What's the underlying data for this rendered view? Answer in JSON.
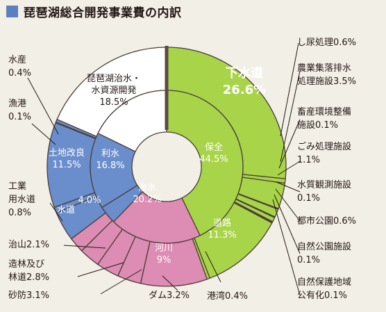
{
  "title": "琵琶湖総合開発事業費の内訳",
  "chart_data": {
    "type": "pie",
    "title": "琵琶湖総合開発事業費の内訳",
    "unit": "%",
    "inner_ring": [
      {
        "label": "保全",
        "value": 44.5,
        "color": "#a8d44a"
      },
      {
        "label": "治水",
        "value": 20.2,
        "color": "#dd8cb4"
      },
      {
        "label": "水道",
        "value": 4.0,
        "color": "#6a8dcb"
      },
      {
        "label": "利水",
        "value": 16.8,
        "color": "#6a8dcb"
      },
      {
        "label": "琵琶湖治水・水資源開発",
        "value": 18.5,
        "color": "#ffffff"
      }
    ],
    "outer_ring": [
      {
        "label": "下水道",
        "value": 26.6,
        "group": "保全",
        "color": "#a8d44a"
      },
      {
        "label": "し尿処理",
        "value": 0.6,
        "group": "保全",
        "color": "#a8d44a"
      },
      {
        "label": "農業集落排水処理施設",
        "value": 3.5,
        "group": "保全",
        "color": "#a8d44a"
      },
      {
        "label": "畜産環境整備施設",
        "value": 0.1,
        "group": "保全",
        "color": "#a8d44a"
      },
      {
        "label": "ごみ処理施設",
        "value": 1.1,
        "group": "保全",
        "color": "#a8d44a"
      },
      {
        "label": "水質観測施設",
        "value": 0.1,
        "group": "保全",
        "color": "#a8d44a"
      },
      {
        "label": "都市公園",
        "value": 0.6,
        "group": "保全",
        "color": "#a8d44a"
      },
      {
        "label": "自然公園施設",
        "value": 0.1,
        "group": "保全",
        "color": "#a8d44a"
      },
      {
        "label": "自然保護地域公有化",
        "value": 0.1,
        "group": "保全",
        "color": "#a8d44a"
      },
      {
        "label": "道路",
        "value": 11.3,
        "group": "保全",
        "color": "#a8d44a"
      },
      {
        "label": "港湾",
        "value": 0.4,
        "group": "保全",
        "color": "#a8d44a"
      },
      {
        "label": "河川",
        "value": 9,
        "group": "治水",
        "color": "#dd8cb4"
      },
      {
        "label": "ダム",
        "value": 3.2,
        "group": "治水",
        "color": "#dd8cb4"
      },
      {
        "label": "砂防",
        "value": 3.1,
        "group": "治水",
        "color": "#dd8cb4"
      },
      {
        "label": "造林及び林道",
        "value": 2.8,
        "group": "治水",
        "color": "#dd8cb4"
      },
      {
        "label": "治山",
        "value": 2.1,
        "group": "治水",
        "color": "#dd8cb4"
      },
      {
        "label": "水道",
        "value": 4.0,
        "group": "水道",
        "color": "#6a8dcb"
      },
      {
        "label": "工業用水道",
        "value": 0.8,
        "group": "利水",
        "color": "#6a8dcb"
      },
      {
        "label": "土地改良",
        "value": 11.5,
        "group": "利水",
        "color": "#6a8dcb"
      },
      {
        "label": "漁港",
        "value": 0.1,
        "group": "利水",
        "color": "#6a8dcb"
      },
      {
        "label": "水産",
        "value": 0.4,
        "group": "利水",
        "color": "#6a8dcb"
      },
      {
        "label": "琵琶湖治水・水資源開発",
        "value": 18.5,
        "group": "琵琶湖治水・水資源開発",
        "color": "#ffffff"
      }
    ],
    "labels": {
      "gesuido": [
        "下水道",
        "26.6%"
      ],
      "biwako": [
        "琵琶湖治水・",
        "水資源開発",
        "18.5%"
      ],
      "hozen": [
        "保全",
        "44.5%"
      ],
      "risui": [
        "利水",
        "16.8%"
      ],
      "tochi": [
        "土地改良",
        "11.5%"
      ],
      "chisui": [
        "治水",
        "20.2%"
      ],
      "suido": [
        "水道"
      ],
      "suido_val": [
        "4.0%"
      ],
      "doro": [
        "道路",
        "11.3%"
      ],
      "kasen": [
        "河川",
        "9%"
      ],
      "shinyo": [
        "し尿処理0.6%"
      ],
      "nogyo": [
        "農業集落排水",
        "処理施設3.5%"
      ],
      "chikusan": [
        "畜産環境整備",
        "施設0.1%"
      ],
      "gomi": [
        "ごみ処理施設",
        "1.1%"
      ],
      "suishitsu": [
        "水質観測施設",
        "0.1%"
      ],
      "toshi": [
        "都市公園0.6%"
      ],
      "shizenkoen": [
        "自然公園施設",
        "0.1%"
      ],
      "shizenhogo": [
        "自然保護地域",
        "公有化0.1%"
      ],
      "kowan": [
        "港湾0.4%"
      ],
      "dam": [
        "ダム3.2%"
      ],
      "sabo": [
        "砂防3.1%"
      ],
      "zorin": [
        "造林及び",
        "林道2.8%"
      ],
      "chisan": [
        "治山2.1%"
      ],
      "kogyo": [
        "工業",
        "用水道",
        "0.8%"
      ],
      "gyoko": [
        "漁港",
        "0.1%"
      ],
      "suisan": [
        "水産",
        "0.4%"
      ]
    }
  }
}
